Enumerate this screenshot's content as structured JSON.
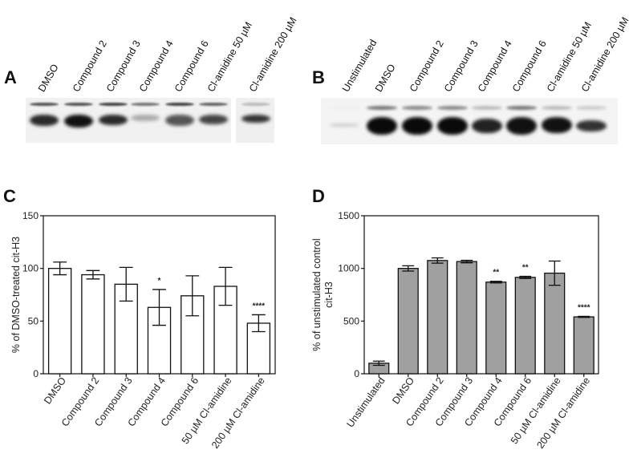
{
  "panel_a": {
    "letter": "A",
    "lanes": [
      "DMSO",
      "Compound 2",
      "Compound 3",
      "Compound 4",
      "Compound 6",
      "Cl-amidine 50 µM",
      "Cl-amidine 200 µM"
    ]
  },
  "panel_b": {
    "letter": "B",
    "lanes": [
      "Unstimulated",
      "DMSO",
      "Compound 2",
      "Compound 3",
      "Compound 4",
      "Compound 6",
      "Cl-amidine 50 µM",
      "Cl-amidine 200 µM"
    ]
  },
  "panel_c": {
    "letter": "C"
  },
  "panel_d": {
    "letter": "D"
  },
  "chart_data": [
    {
      "type": "bar",
      "panel": "C",
      "title": "",
      "xlabel": "",
      "ylabel": "% of DMSO-treated cit-H3",
      "ylim": [
        0,
        150
      ],
      "yticks": [
        0,
        50,
        100,
        150
      ],
      "grid": false,
      "bar_color": "#ffffff",
      "categories": [
        "DMSO",
        "Compound 2",
        "Compound 3",
        "Compound 4",
        "Compound 6",
        "50 µM  Cl-amidine",
        "200 µM  Cl-amidine"
      ],
      "values": [
        100,
        94,
        85,
        63,
        74,
        83,
        48
      ],
      "error": [
        6,
        4,
        16,
        17,
        19,
        18,
        8
      ],
      "annotations": [
        "",
        "",
        "",
        "*",
        "",
        "",
        "****"
      ]
    },
    {
      "type": "bar",
      "panel": "D",
      "title": "",
      "xlabel": "",
      "ylabel": "% of unstimulated control cit-H3",
      "ylabel_lines": [
        "% of unstimulated control",
        "cit-H3"
      ],
      "ylim": [
        0,
        1500
      ],
      "yticks": [
        0,
        500,
        1000,
        1500
      ],
      "grid": false,
      "bar_color": "#a0a0a0",
      "categories": [
        "Unstimulated",
        "DMSO",
        "Compound 2",
        "Compound 3",
        "Compound 4",
        "Compound 6",
        "50 µM  Cl-amidine",
        "200 µM  Cl-amidine"
      ],
      "values": [
        100,
        1000,
        1075,
        1065,
        870,
        915,
        955,
        540
      ],
      "error": [
        20,
        25,
        25,
        12,
        8,
        10,
        115,
        5
      ],
      "annotations": [
        "",
        "",
        "",
        "",
        "**",
        "**",
        "",
        "****"
      ]
    }
  ]
}
